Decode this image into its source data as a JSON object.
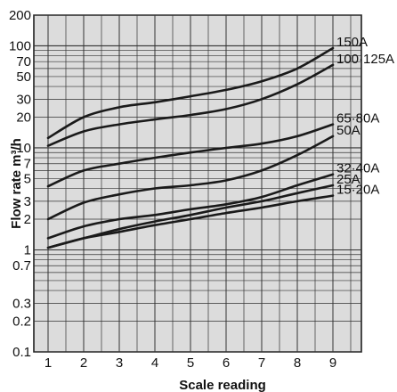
{
  "chart_data": {
    "type": "line",
    "title": "",
    "xlabel": "Scale reading",
    "ylabel": "Flow rate m³/h",
    "xlim": [
      0.6,
      9.8
    ],
    "ylim": [
      0.1,
      200
    ],
    "yscale": "log",
    "grid": true,
    "x_ticks": [
      1,
      2,
      3,
      4,
      5,
      6,
      7,
      8,
      9
    ],
    "y_ticks": [
      {
        "value": 0.1,
        "label": "0.1"
      },
      {
        "value": 0.2,
        "label": "0.2"
      },
      {
        "value": 0.3,
        "label": "0.3"
      },
      {
        "value": 0.7,
        "label": "0.7"
      },
      {
        "value": 1,
        "label": "1"
      },
      {
        "value": 2,
        "label": "2"
      },
      {
        "value": 3,
        "label": "3"
      },
      {
        "value": 5,
        "label": "5"
      },
      {
        "value": 7,
        "label": "7"
      },
      {
        "value": 10,
        "label": "10"
      },
      {
        "value": 20,
        "label": "20"
      },
      {
        "value": 30,
        "label": "30"
      },
      {
        "value": 50,
        "label": "50"
      },
      {
        "value": 70,
        "label": "70"
      },
      {
        "value": 100,
        "label": "100"
      },
      {
        "value": 200,
        "label": "200"
      }
    ],
    "x": [
      1,
      2,
      3,
      4,
      5,
      6,
      7,
      8,
      9
    ],
    "series": [
      {
        "name": "150A",
        "values": [
          12.5,
          20,
          25,
          28,
          32,
          37,
          45,
          60,
          95
        ]
      },
      {
        "name": "100·125A",
        "values": [
          10.5,
          14.5,
          17,
          19,
          21,
          24,
          30,
          42,
          65
        ]
      },
      {
        "name": "65·80A",
        "values": [
          4.2,
          6,
          7,
          8,
          9,
          10,
          11,
          13,
          17
        ]
      },
      {
        "name": "50A",
        "values": [
          2,
          2.9,
          3.5,
          4,
          4.3,
          4.8,
          6,
          8.5,
          13
        ]
      },
      {
        "name": "32·40A",
        "values": [
          1.3,
          1.7,
          2,
          2.2,
          2.5,
          2.8,
          3.3,
          4.3,
          5.5
        ]
      },
      {
        "name": "25A",
        "values": [
          1.05,
          1.3,
          1.6,
          1.9,
          2.2,
          2.6,
          3,
          3.6,
          4.3
        ]
      },
      {
        "name": "15·20A",
        "values": [
          1.05,
          1.3,
          1.5,
          1.75,
          2,
          2.3,
          2.6,
          3,
          3.4
        ]
      }
    ]
  }
}
